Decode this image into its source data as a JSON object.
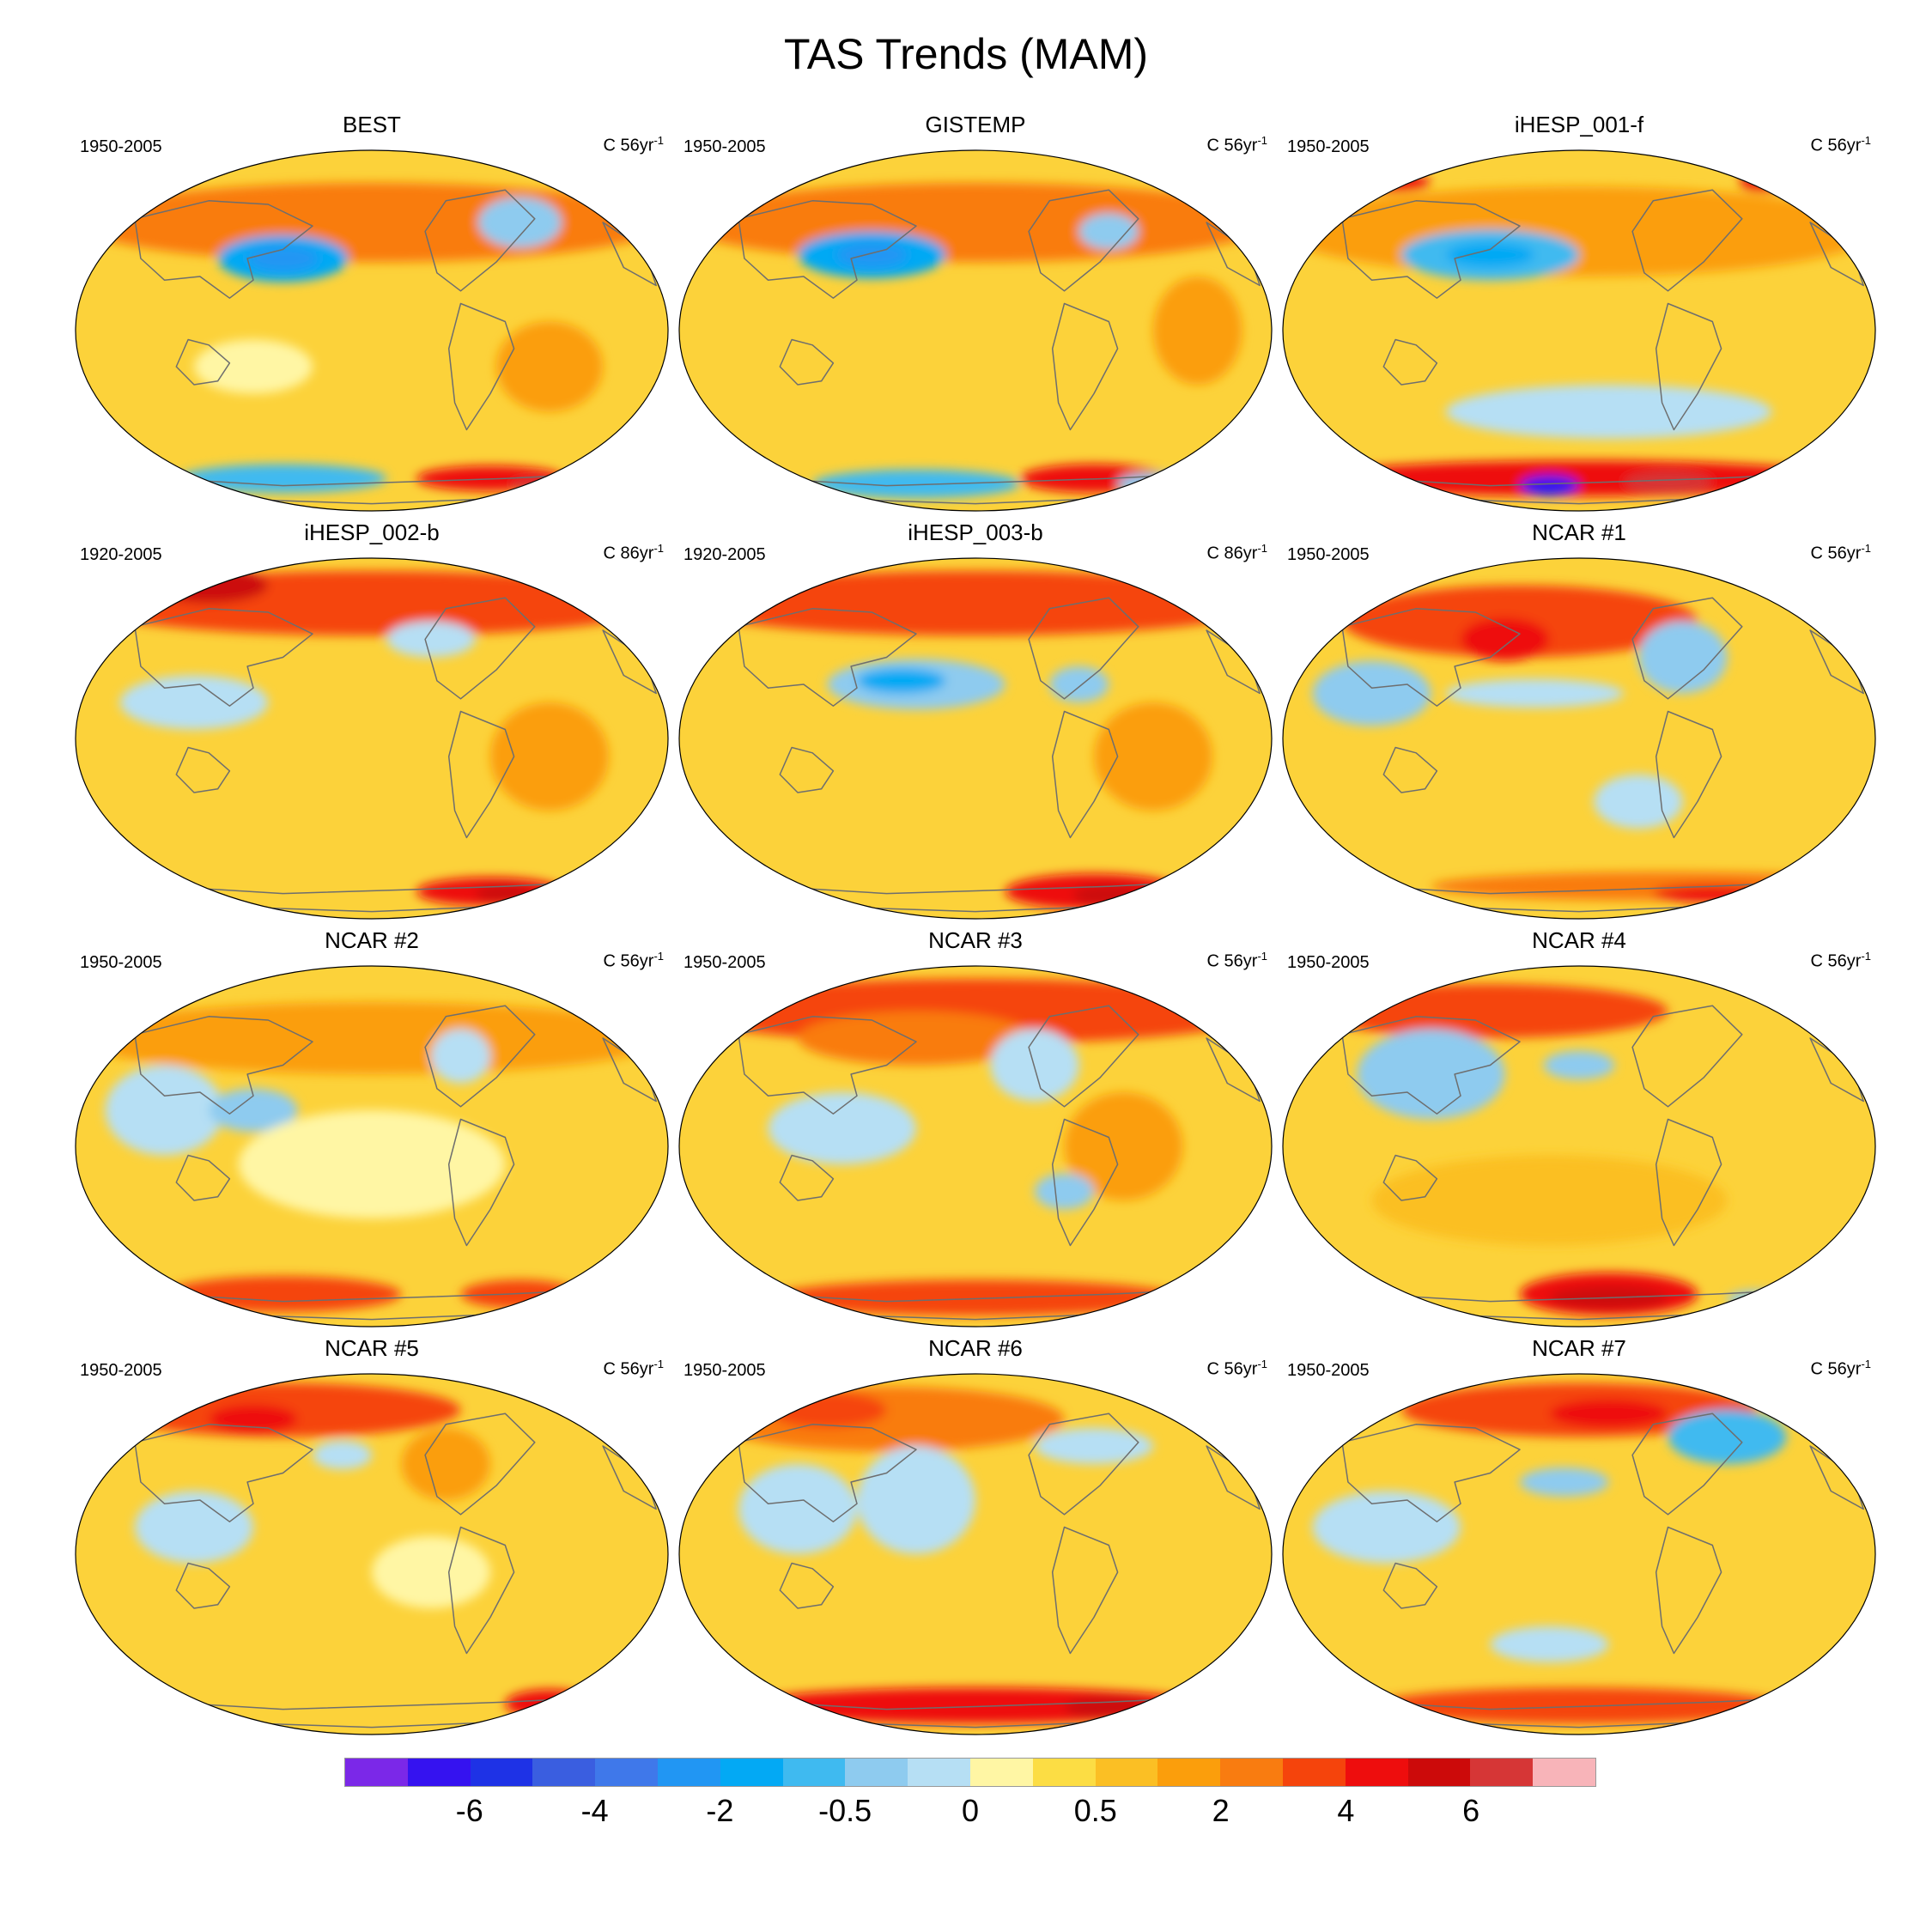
{
  "figure": {
    "title": "TAS Trends (MAM)"
  },
  "colors": {
    "legend": [
      "#7b28e8",
      "#3512f0",
      "#1e32e6",
      "#3a5ee0",
      "#3f78ea",
      "#2196f3",
      "#03a9f4",
      "#3fbaf0",
      "#8ecbef",
      "#b6dff4",
      "#fff6a4",
      "#fcdd44",
      "#fbbf24",
      "#fb9e0c",
      "#f97c10",
      "#f5440c",
      "#ee0d0d",
      "#cc0a0a",
      "#d63636",
      "#f8b4b9"
    ],
    "ocean_base": "#fcd23a",
    "coast": "#6e6e6e"
  },
  "legend": {
    "boxes": 20,
    "tick_labels": [
      {
        "text": "-6",
        "boundary": 2
      },
      {
        "text": "-4",
        "boundary": 4
      },
      {
        "text": "-2",
        "boundary": 6
      },
      {
        "text": "-0.5",
        "boundary": 8
      },
      {
        "text": "0",
        "boundary": 10
      },
      {
        "text": "0.5",
        "boundary": 12
      },
      {
        "text": "2",
        "boundary": 14
      },
      {
        "text": "4",
        "boundary": 16
      },
      {
        "text": "6",
        "boundary": 18
      }
    ]
  },
  "panels": [
    {
      "name": "best",
      "title": "BEST",
      "years": "1950-2005",
      "units": "C 56yr",
      "units_exp": "-1"
    },
    {
      "name": "gistemp",
      "title": "GISTEMP",
      "years": "1950-2005",
      "units": "C 56yr",
      "units_exp": "-1"
    },
    {
      "name": "ihesp-001-f",
      "title": "iHESP_001-f",
      "years": "1950-2005",
      "units": "C 56yr",
      "units_exp": "-1"
    },
    {
      "name": "ihesp-002-b",
      "title": "iHESP_002-b",
      "years": "1920-2005",
      "units": "C 86yr",
      "units_exp": "-1"
    },
    {
      "name": "ihesp-003-b",
      "title": "iHESP_003-b",
      "years": "1920-2005",
      "units": "C 86yr",
      "units_exp": "-1"
    },
    {
      "name": "ncar-1",
      "title": "NCAR #1",
      "years": "1950-2005",
      "units": "C 56yr",
      "units_exp": "-1"
    },
    {
      "name": "ncar-2",
      "title": "NCAR #2",
      "years": "1950-2005",
      "units": "C 56yr",
      "units_exp": "-1"
    },
    {
      "name": "ncar-3",
      "title": "NCAR #3",
      "years": "1950-2005",
      "units": "C 56yr",
      "units_exp": "-1"
    },
    {
      "name": "ncar-4",
      "title": "NCAR #4",
      "years": "1950-2005",
      "units": "C 56yr",
      "units_exp": "-1"
    },
    {
      "name": "ncar-5",
      "title": "NCAR #5",
      "years": "1950-2005",
      "units": "C 56yr",
      "units_exp": "-1"
    },
    {
      "name": "ncar-6",
      "title": "NCAR #6",
      "years": "1950-2005",
      "units": "C 56yr",
      "units_exp": "-1"
    },
    {
      "name": "ncar-7",
      "title": "NCAR #7",
      "years": "1950-2005",
      "units": "C 56yr",
      "units_exp": "-1"
    }
  ]
}
